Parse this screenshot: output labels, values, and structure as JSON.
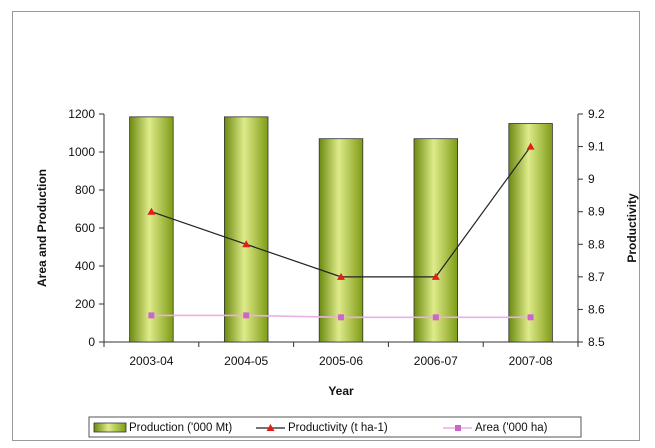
{
  "chart_data": {
    "type": "bar",
    "categories": [
      "2003-04",
      "2004-05",
      "2005-06",
      "2006-07",
      "2007-08"
    ],
    "xlabel": "Year",
    "ylabel_left": "Area and Production",
    "ylabel_right": "Productivity",
    "ylim_left": [
      0,
      1200
    ],
    "ylim_right": [
      8.5,
      9.2
    ],
    "yticks_left": [
      "0",
      "200",
      "400",
      "600",
      "800",
      "1000",
      "1200"
    ],
    "yticks_right": [
      "8.5",
      "8.6",
      "8.7",
      "8.8",
      "8.9",
      "9",
      "9.1",
      "9.2"
    ],
    "grid": false,
    "legend_position": "bottom",
    "series": [
      {
        "name": "Production ('000 Mt)",
        "type": "bar",
        "axis": "left",
        "values": [
          1185,
          1185,
          1070,
          1070,
          1150
        ]
      },
      {
        "name": "Productivity (t ha-1)",
        "type": "line",
        "axis": "right",
        "marker": "triangle",
        "values": [
          8.9,
          8.8,
          8.7,
          8.7,
          9.1
        ]
      },
      {
        "name": "Area ('000 ha)",
        "type": "line",
        "axis": "left",
        "marker": "square",
        "values": [
          140,
          140,
          130,
          130,
          130
        ]
      }
    ],
    "colors": {
      "bar_fill": "#8fac1e",
      "bar_highlight": "#dfeb8a",
      "productivity_line": "#222222",
      "productivity_marker": "#e0201a",
      "area_line": "#e8b0e8",
      "area_marker": "#cc66cc"
    }
  }
}
